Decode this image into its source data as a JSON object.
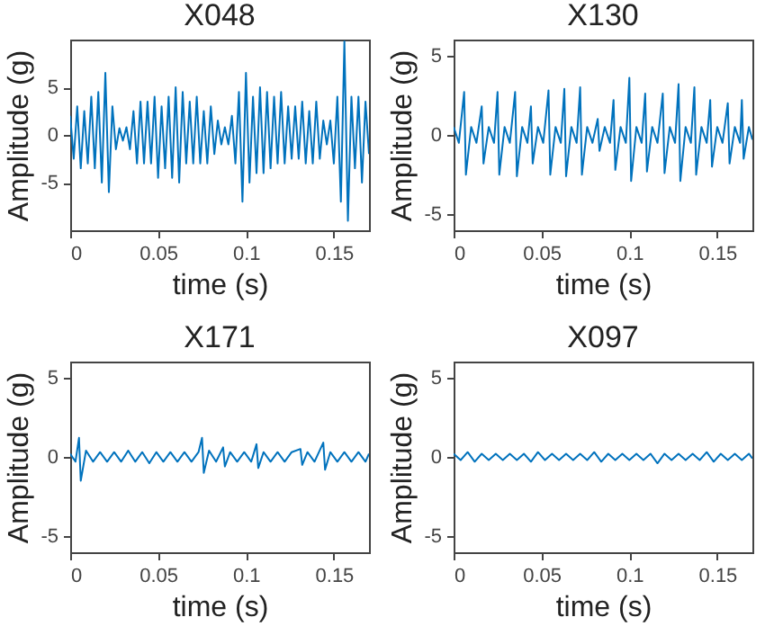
{
  "chart_data": [
    {
      "type": "line",
      "title": "X048",
      "xlabel": "time (s)",
      "ylabel": "Amplitude (g)",
      "color": "#0072bd",
      "xlim": [
        0,
        0.17
      ],
      "ylim": [
        -10,
        10
      ],
      "xticks": [
        0,
        0.05,
        0.1,
        0.15
      ],
      "yticks": [
        -5,
        0,
        5
      ],
      "x": [
        0,
        0.002,
        0.004,
        0.006,
        0.008,
        0.01,
        0.012,
        0.014,
        0.016,
        0.018,
        0.02,
        0.022,
        0.024,
        0.026,
        0.028,
        0.03,
        0.032,
        0.034,
        0.036,
        0.038,
        0.04,
        0.042,
        0.044,
        0.046,
        0.048,
        0.05,
        0.052,
        0.054,
        0.056,
        0.058,
        0.06,
        0.062,
        0.064,
        0.066,
        0.068,
        0.07,
        0.072,
        0.074,
        0.076,
        0.078,
        0.08,
        0.082,
        0.084,
        0.086,
        0.088,
        0.09,
        0.092,
        0.094,
        0.096,
        0.098,
        0.1,
        0.102,
        0.104,
        0.106,
        0.108,
        0.11,
        0.112,
        0.114,
        0.116,
        0.118,
        0.12,
        0.122,
        0.124,
        0.126,
        0.128,
        0.13,
        0.132,
        0.134,
        0.136,
        0.138,
        0.14,
        0.142,
        0.144,
        0.146,
        0.148,
        0.15,
        0.152,
        0.154,
        0.156,
        0.158,
        0.16,
        0.162,
        0.164,
        0.166,
        0.168,
        0.17
      ],
      "values": [
        2,
        -2.5,
        3,
        -3.5,
        2.5,
        -3,
        4,
        -3.5,
        4.5,
        -5,
        6.5,
        -6,
        3,
        -1.5,
        0.7,
        -0.6,
        0.8,
        -1.5,
        2.5,
        -3,
        3.5,
        -3,
        3.5,
        -3,
        4,
        -4.5,
        3,
        -3.5,
        4,
        -4.5,
        5,
        -5,
        4.5,
        -3,
        3.5,
        -3,
        4,
        -3,
        2.5,
        -3,
        3,
        -2,
        1.5,
        -1,
        0.8,
        -1,
        2,
        -3,
        4.5,
        -7,
        6.5,
        -5,
        4,
        -4,
        5,
        -4,
        4.5,
        -3.5,
        4,
        -3,
        4.5,
        -3,
        3,
        -2.5,
        3,
        -2.5,
        3.5,
        -3,
        2.5,
        -3,
        3.5,
        -2.5,
        1.5,
        -1,
        1.5,
        -3,
        4,
        -7,
        9.8,
        -9,
        4,
        -3.5,
        4,
        -5,
        3.5,
        -2
      ]
    },
    {
      "type": "line",
      "title": "X130",
      "xlabel": "time (s)",
      "ylabel": "Amplitude (g)",
      "color": "#0072bd",
      "xlim": [
        0,
        0.17
      ],
      "ylim": [
        -6,
        6
      ],
      "xticks": [
        0,
        0.05,
        0.1,
        0.15
      ],
      "yticks": [
        -5,
        0,
        5
      ],
      "x": [
        0,
        0.003,
        0.006,
        0.007,
        0.01,
        0.013,
        0.016,
        0.017,
        0.02,
        0.023,
        0.025,
        0.026,
        0.029,
        0.032,
        0.035,
        0.036,
        0.039,
        0.042,
        0.044,
        0.045,
        0.048,
        0.051,
        0.054,
        0.055,
        0.058,
        0.061,
        0.063,
        0.064,
        0.067,
        0.07,
        0.072,
        0.073,
        0.076,
        0.079,
        0.082,
        0.083,
        0.086,
        0.089,
        0.091,
        0.092,
        0.095,
        0.098,
        0.1,
        0.101,
        0.104,
        0.107,
        0.109,
        0.11,
        0.113,
        0.116,
        0.119,
        0.12,
        0.123,
        0.126,
        0.128,
        0.129,
        0.132,
        0.135,
        0.137,
        0.138,
        0.141,
        0.144,
        0.146,
        0.147,
        0.15,
        0.153,
        0.156,
        0.157,
        0.16,
        0.163,
        0.164,
        0.165,
        0.168,
        0.17
      ],
      "values": [
        0.5,
        -0.5,
        2.7,
        -2.5,
        0.5,
        -0.5,
        1.8,
        -1.8,
        0.5,
        -0.5,
        2.7,
        -2.5,
        0.5,
        -0.5,
        2.7,
        -2.6,
        0.5,
        -0.5,
        1.8,
        -1.8,
        0.5,
        -0.5,
        2.8,
        -2.5,
        0.5,
        -0.5,
        2.9,
        -2.6,
        0.5,
        -0.5,
        3,
        -2.5,
        0.5,
        -0.5,
        1,
        -1,
        0.5,
        -0.5,
        2.2,
        -2.2,
        0.5,
        -0.5,
        3.6,
        -2.9,
        0.5,
        -0.5,
        2.6,
        -2.3,
        0.5,
        -0.5,
        2.6,
        -2.4,
        0.5,
        -0.5,
        3.2,
        -2.9,
        0.5,
        -0.5,
        3,
        -2.5,
        0.5,
        -0.5,
        2.2,
        -2,
        0.5,
        -0.5,
        2,
        -1.8,
        0.5,
        -0.5,
        2.2,
        -1.5,
        0.5,
        -0.3
      ]
    },
    {
      "type": "line",
      "title": "X171",
      "xlabel": "time (s)",
      "ylabel": "Amplitude (g)",
      "color": "#0072bd",
      "xlim": [
        0,
        0.17
      ],
      "ylim": [
        -6,
        6
      ],
      "xticks": [
        0,
        0.05,
        0.1,
        0.15
      ],
      "yticks": [
        -5,
        0,
        5
      ],
      "x": [
        0,
        0.003,
        0.005,
        0.006,
        0.009,
        0.013,
        0.017,
        0.021,
        0.025,
        0.029,
        0.033,
        0.037,
        0.041,
        0.045,
        0.049,
        0.053,
        0.057,
        0.061,
        0.065,
        0.069,
        0.073,
        0.075,
        0.076,
        0.079,
        0.083,
        0.087,
        0.088,
        0.091,
        0.095,
        0.099,
        0.103,
        0.106,
        0.107,
        0.11,
        0.114,
        0.118,
        0.122,
        0.126,
        0.131,
        0.132,
        0.135,
        0.139,
        0.144,
        0.145,
        0.148,
        0.152,
        0.156,
        0.16,
        0.164,
        0.168,
        0.17
      ],
      "values": [
        0.2,
        -0.3,
        1.2,
        -1.5,
        0.4,
        -0.3,
        0.3,
        -0.3,
        0.3,
        -0.3,
        0.4,
        -0.3,
        0.3,
        -0.4,
        0.3,
        -0.3,
        0.3,
        -0.3,
        0.3,
        -0.3,
        0.3,
        1.2,
        -1,
        0.4,
        -0.3,
        0.6,
        -0.6,
        0.3,
        -0.3,
        0.3,
        -0.3,
        0.8,
        -0.7,
        0.3,
        -0.3,
        0.3,
        -0.3,
        0.3,
        0.5,
        -0.5,
        0.3,
        -0.3,
        0.9,
        -0.8,
        0.3,
        -0.3,
        0.3,
        -0.3,
        0.3,
        -0.3,
        0.2
      ]
    },
    {
      "type": "line",
      "title": "X097",
      "xlabel": "time (s)",
      "ylabel": "Amplitude (g)",
      "color": "#0072bd",
      "xlim": [
        0,
        0.17
      ],
      "ylim": [
        -6,
        6
      ],
      "xticks": [
        0,
        0.05,
        0.1,
        0.15
      ],
      "yticks": [
        -5,
        0,
        5
      ],
      "x": [
        0,
        0.004,
        0.008,
        0.012,
        0.016,
        0.02,
        0.024,
        0.028,
        0.032,
        0.036,
        0.04,
        0.044,
        0.048,
        0.052,
        0.056,
        0.06,
        0.064,
        0.068,
        0.072,
        0.076,
        0.08,
        0.084,
        0.088,
        0.092,
        0.096,
        0.1,
        0.104,
        0.108,
        0.112,
        0.116,
        0.12,
        0.124,
        0.128,
        0.132,
        0.136,
        0.14,
        0.144,
        0.148,
        0.152,
        0.156,
        0.16,
        0.164,
        0.168,
        0.17
      ],
      "values": [
        0.2,
        -0.2,
        0.3,
        -0.3,
        0.2,
        -0.2,
        0.2,
        -0.2,
        0.2,
        -0.2,
        0.2,
        -0.3,
        0.3,
        -0.2,
        0.2,
        -0.2,
        0.2,
        -0.2,
        0.2,
        -0.2,
        0.3,
        -0.3,
        0.2,
        -0.2,
        0.2,
        -0.2,
        0.2,
        -0.2,
        0.2,
        -0.4,
        0.2,
        -0.2,
        0.2,
        -0.2,
        0.2,
        -0.2,
        0.3,
        -0.3,
        0.2,
        -0.2,
        0.2,
        -0.2,
        0.2,
        -0.1
      ]
    }
  ]
}
